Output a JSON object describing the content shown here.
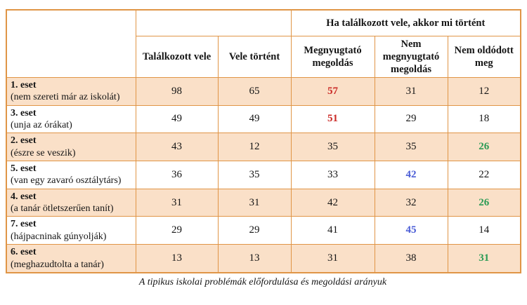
{
  "caption": "A tipikus iskolai problémák előfordulása és megoldási arányuk",
  "table": {
    "group_header": "Ha találkozott vele, akkor mi történt",
    "col_headers": [
      "Találkozott vele",
      "Vele történt",
      "Megnyugtató megoldás",
      "Nem megnyugtató megoldás",
      "Nem oldódott meg"
    ],
    "rows": [
      {
        "title": "1. eset",
        "desc": "(nem szereti már az iskolát)",
        "shaded": true,
        "cells": [
          {
            "v": "98"
          },
          {
            "v": "65"
          },
          {
            "v": "57",
            "color": "red"
          },
          {
            "v": "31"
          },
          {
            "v": "12"
          }
        ]
      },
      {
        "title": "3. eset",
        "desc": "(unja az órákat)",
        "shaded": false,
        "cells": [
          {
            "v": "49"
          },
          {
            "v": "49"
          },
          {
            "v": "51",
            "color": "red"
          },
          {
            "v": "29"
          },
          {
            "v": "18"
          }
        ]
      },
      {
        "title": "2. eset",
        "desc": "(észre se veszik)",
        "shaded": true,
        "cells": [
          {
            "v": "43"
          },
          {
            "v": "12"
          },
          {
            "v": "35"
          },
          {
            "v": "35"
          },
          {
            "v": "26",
            "color": "green"
          }
        ]
      },
      {
        "title": "5. eset",
        "desc": "(van egy zavaró osztálytárs)",
        "shaded": false,
        "cells": [
          {
            "v": "36"
          },
          {
            "v": "35"
          },
          {
            "v": "33"
          },
          {
            "v": "42",
            "color": "blue"
          },
          {
            "v": "22"
          }
        ]
      },
      {
        "title": "4. eset",
        "desc": "(a tanár ötletszerűen tanít)",
        "shaded": true,
        "cells": [
          {
            "v": "31"
          },
          {
            "v": "31"
          },
          {
            "v": "42"
          },
          {
            "v": "32"
          },
          {
            "v": "26",
            "color": "green"
          }
        ]
      },
      {
        "title": "7. eset",
        "desc": "(hájpacninak gúnyolják)",
        "shaded": false,
        "cells": [
          {
            "v": "29"
          },
          {
            "v": "29"
          },
          {
            "v": "41"
          },
          {
            "v": "45",
            "color": "blue"
          },
          {
            "v": "14"
          }
        ]
      },
      {
        "title": "6. eset",
        "desc": "(meghazudtolta a tanár)",
        "shaded": true,
        "cells": [
          {
            "v": "13"
          },
          {
            "v": "13"
          },
          {
            "v": "31"
          },
          {
            "v": "38"
          },
          {
            "v": "31",
            "color": "green"
          }
        ]
      }
    ]
  },
  "colors": {
    "border": "#E09546",
    "row_shade": "#FAE0C8",
    "highlight_red": "#CB2B27",
    "highlight_blue": "#4A5CD6",
    "highlight_green": "#2B9B55"
  },
  "chart_data": {
    "type": "table",
    "title": "A tipikus iskolai problémák előfordulása és megoldási arányuk",
    "columns": [
      "Találkozott vele",
      "Vele történt",
      "Megnyugtató megoldás",
      "Nem megnyugtató megoldás",
      "Nem oldódott meg"
    ],
    "group_header_over_columns_3_to_5": "Ha találkozott vele, akkor mi történt",
    "row_labels": [
      "1. eset (nem szereti már az iskolát)",
      "3. eset (unja az órákat)",
      "2. eset (észre se veszik)",
      "5. eset (van egy zavaró osztálytárs)",
      "4. eset (a tanár ötletszerűen tanít)",
      "7. eset (hájpacninak gúnyolják)",
      "6. eset (meghazudtolta a tanár)"
    ],
    "values": [
      [
        98,
        65,
        57,
        31,
        12
      ],
      [
        49,
        49,
        51,
        29,
        18
      ],
      [
        43,
        12,
        35,
        35,
        26
      ],
      [
        36,
        35,
        33,
        42,
        22
      ],
      [
        31,
        31,
        42,
        32,
        26
      ],
      [
        29,
        29,
        41,
        45,
        14
      ],
      [
        13,
        13,
        31,
        38,
        31
      ]
    ]
  }
}
